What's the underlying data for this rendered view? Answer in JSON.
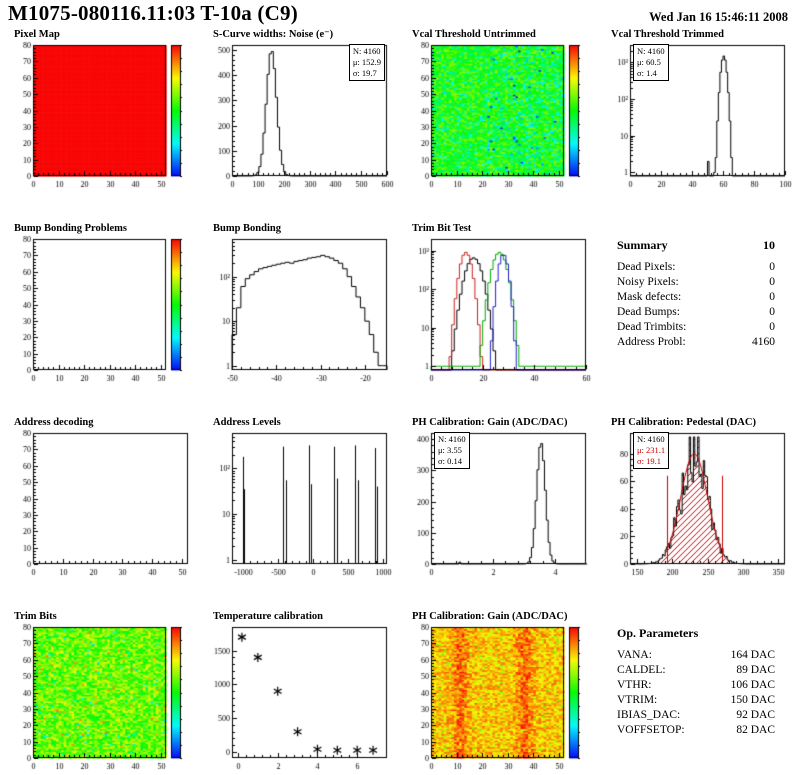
{
  "header": {
    "title": "M1075-080116.11:03 T-10a (C9)",
    "date": "Wed Jan 16 15:46:11 2008"
  },
  "chart_data": [
    {
      "title": "Pixel Map",
      "type": "heatmap",
      "pattern": "red",
      "colorbar": true,
      "seed": 11,
      "x": {
        "min": 0,
        "max": 52,
        "ticks": [
          0,
          10,
          20,
          30,
          40,
          50
        ]
      },
      "y": {
        "min": 0,
        "max": 80,
        "ticks": [
          0,
          10,
          20,
          30,
          40,
          50,
          60,
          70,
          80
        ]
      }
    },
    {
      "title": "S-Curve widths: Noise (e⁻)",
      "type": "hist",
      "bin": 8,
      "x": {
        "min": 0,
        "max": 600,
        "ticks": [
          0,
          100,
          200,
          300,
          400,
          500,
          600
        ]
      },
      "y": {
        "min": 0,
        "max": 520,
        "ticks": [
          0,
          100,
          200,
          300,
          400,
          500
        ]
      },
      "gauss": {
        "mu": 152.9,
        "sigma": 19.7,
        "amp": 500
      },
      "stats": {
        "pos": "tr",
        "lines": [
          "N: 4160",
          "μ: 152.9",
          "σ: 19.7"
        ]
      }
    },
    {
      "title": "Vcal Threshold Untrimmed",
      "type": "heatmap",
      "pattern": "cool",
      "colorbar": true,
      "seed": 7,
      "x": {
        "min": 0,
        "max": 52,
        "ticks": [
          0,
          10,
          20,
          30,
          40,
          50
        ]
      },
      "y": {
        "min": 0,
        "max": 80,
        "ticks": [
          0,
          10,
          20,
          30,
          40,
          50,
          60,
          70,
          80
        ]
      }
    },
    {
      "title": "Vcal Threshold Trimmed",
      "type": "hist",
      "logy": true,
      "bin": 1,
      "x": {
        "min": 0,
        "max": 100,
        "ticks": [
          0,
          20,
          40,
          60,
          80,
          100
        ]
      },
      "y": {
        "min": 0.8,
        "max": 3000,
        "ticks": [
          {
            "v": 1,
            "l": "1"
          },
          {
            "v": 10,
            "l": "10"
          },
          {
            "v": 100,
            "l": "10²"
          },
          {
            "v": 1000,
            "l": "10³"
          }
        ]
      },
      "gauss": {
        "mu": 60.5,
        "sigma": 1.4,
        "amp": 1500
      },
      "extra": [
        [
          50,
          2
        ],
        [
          54,
          1
        ]
      ],
      "stats": {
        "pos": "tl",
        "lines": [
          "N: 4160",
          "μ: 60.5",
          "σ: 1.4"
        ]
      }
    },
    {
      "title": "Bump Bonding Problems",
      "type": "empty",
      "colorbar": true,
      "x": {
        "min": 0,
        "max": 52,
        "ticks": [
          0,
          10,
          20,
          30,
          40,
          50
        ]
      },
      "y": {
        "min": 0,
        "max": 80,
        "ticks": [
          0,
          10,
          20,
          30,
          40,
          50,
          60,
          70,
          80
        ]
      }
    },
    {
      "title": "Bump Bonding",
      "type": "hist",
      "logy": true,
      "x": {
        "min": -50,
        "max": -15,
        "ticks": [
          -50,
          -40,
          -30,
          -20
        ]
      },
      "y": {
        "min": 0.8,
        "max": 700,
        "ticks": [
          {
            "v": 1,
            "l": "1"
          },
          {
            "v": 10,
            "l": "10"
          },
          {
            "v": 100,
            "l": "10²"
          }
        ]
      },
      "counts": {
        "x0": -50,
        "dx": 1,
        "values": [
          5,
          20,
          60,
          90,
          110,
          130,
          150,
          160,
          170,
          180,
          190,
          200,
          210,
          200,
          220,
          230,
          240,
          260,
          270,
          280,
          300,
          280,
          260,
          230,
          200,
          150,
          100,
          60,
          35,
          20,
          10,
          5,
          2,
          1,
          1
        ]
      }
    },
    {
      "title": "Trim Bit Test",
      "type": "multihist",
      "logy": true,
      "bin": 1,
      "x": {
        "min": 0,
        "max": 60,
        "ticks": [
          0,
          20,
          40,
          60
        ]
      },
      "y": {
        "min": 0.8,
        "max": 2000,
        "ticks": [
          {
            "v": 1,
            "l": "1"
          },
          {
            "v": 10,
            "l": "10"
          },
          {
            "v": 100,
            "l": "10²"
          },
          {
            "v": 1000,
            "l": "10³"
          }
        ]
      },
      "series": [
        {
          "color": "#000000",
          "mu": 16.5,
          "sigma": 2.4,
          "amp": 650
        },
        {
          "color": "#cc2222",
          "mu": 13.5,
          "sigma": 1.7,
          "amp": 900
        },
        {
          "color": "#00aa00",
          "mu": 26.5,
          "sigma": 2.1,
          "amp": 900,
          "floor": 1
        },
        {
          "color": "#2222cc",
          "mu": 28.0,
          "sigma": 1.4,
          "amp": 800
        }
      ]
    },
    {
      "type": "text",
      "heading": "Summary",
      "heading_value": "10",
      "rows": [
        [
          "Dead Pixels:",
          "0"
        ],
        [
          "Noisy Pixels:",
          "0"
        ],
        [
          "Mask defects:",
          "0"
        ],
        [
          "Dead Bumps:",
          "0"
        ],
        [
          "Dead Trimbits:",
          "0"
        ],
        [
          "Address Probl:",
          "4160"
        ]
      ]
    },
    {
      "title": "Address decoding",
      "type": "empty",
      "colorbar": false,
      "x": {
        "min": 0,
        "max": 52,
        "ticks": [
          0,
          10,
          20,
          30,
          40,
          50
        ]
      },
      "y": {
        "min": 0,
        "max": 80,
        "ticks": [
          0,
          10,
          20,
          30,
          40,
          50,
          60,
          70,
          80
        ]
      }
    },
    {
      "title": "Address Levels",
      "type": "spikes",
      "logy": true,
      "x": {
        "min": -1150,
        "max": 1050,
        "ticks": [
          -1000,
          -500,
          0,
          500,
          1000
        ]
      },
      "y": {
        "min": 0.8,
        "max": 600,
        "ticks": [
          {
            "v": 1,
            "l": "1"
          },
          {
            "v": 10,
            "l": "10"
          },
          {
            "v": 100,
            "l": "10²"
          }
        ]
      },
      "spikes": [
        [
          -1000,
          180
        ],
        [
          -975,
          35
        ],
        [
          -420,
          300
        ],
        [
          -390,
          55
        ],
        [
          -60,
          320
        ],
        [
          -25,
          45
        ],
        [
          300,
          300
        ],
        [
          335,
          60
        ],
        [
          600,
          320
        ],
        [
          635,
          55
        ],
        [
          880,
          280
        ],
        [
          910,
          40
        ]
      ]
    },
    {
      "title": "PH Calibration: Gain (ADC/DAC)",
      "type": "hist",
      "bin": 0.06,
      "x": {
        "min": 0,
        "max": 5,
        "ticks": [
          0,
          2,
          4
        ]
      },
      "y": {
        "min": 0,
        "max": 420,
        "ticks": [
          0,
          100,
          200,
          300,
          400
        ]
      },
      "gauss": {
        "mu": 3.55,
        "sigma": 0.14,
        "amp": 390
      },
      "extra": [
        [
          0.9,
          6
        ]
      ],
      "stats": {
        "pos": "tl",
        "lines": [
          "N: 4160",
          "μ: 3.55",
          "σ: 0.14"
        ]
      }
    },
    {
      "title": "PH Calibration: Pedestal (DAC)",
      "type": "hist",
      "bin": 2,
      "jitter": true,
      "hatch": true,
      "seed": 5,
      "x": {
        "min": 140,
        "max": 360,
        "ticks": [
          150,
          200,
          250,
          300,
          350
        ]
      },
      "y": {
        "min": 0,
        "max": 95,
        "ticks": [
          0,
          20,
          40,
          60,
          80
        ]
      },
      "gauss": {
        "mu": 231.1,
        "sigma": 19.1,
        "amp": 80
      },
      "fit": {
        "mu": 231.1,
        "sigma": 19.1,
        "amp": 80,
        "range": [
          192,
          270
        ],
        "lines": [
          192,
          270
        ]
      },
      "stats": {
        "pos": "tl",
        "lines": [
          "N: 4160",
          "μ: 231.1",
          "σ: 19.1"
        ]
      }
    },
    {
      "title": "Trim Bits",
      "type": "heatmap",
      "pattern": "green",
      "colorbar": true,
      "seed": 3,
      "x": {
        "min": 0,
        "max": 52,
        "ticks": [
          0,
          10,
          20,
          30,
          40,
          50
        ]
      },
      "y": {
        "min": 0,
        "max": 80,
        "ticks": [
          0,
          10,
          20,
          30,
          40,
          50,
          60,
          70,
          80
        ]
      }
    },
    {
      "title": "Temperature calibration",
      "type": "scatter",
      "x": {
        "min": -0.3,
        "max": 7.5,
        "ticks": [
          0,
          2,
          4,
          6
        ]
      },
      "y": {
        "min": -90,
        "max": 1850,
        "ticks": [
          0,
          500,
          1000,
          1500
        ]
      },
      "points": [
        [
          0.2,
          1700
        ],
        [
          1,
          1400
        ],
        [
          2,
          900
        ],
        [
          3,
          300
        ],
        [
          4,
          40
        ],
        [
          5,
          25
        ],
        [
          6,
          25
        ],
        [
          6.8,
          25
        ]
      ]
    },
    {
      "title": "PH Calibration: Gain (ADC/DAC)",
      "type": "heatmap",
      "pattern": "warm",
      "colorbar": true,
      "seed": 9,
      "x": {
        "min": 0,
        "max": 52,
        "ticks": [
          0,
          10,
          20,
          30,
          40,
          50
        ]
      },
      "y": {
        "min": 0,
        "max": 80,
        "ticks": [
          0,
          10,
          20,
          30,
          40,
          50,
          60,
          70,
          80
        ]
      }
    },
    {
      "type": "text",
      "heading": "Op. Parameters",
      "rows": [
        [
          "VANA:",
          "164 DAC"
        ],
        [
          "CALDEL:",
          "89 DAC"
        ],
        [
          "VTHR:",
          "106 DAC"
        ],
        [
          "VTRIM:",
          "150 DAC"
        ],
        [
          "IBIAS_DAC:",
          "92 DAC"
        ],
        [
          "VOFFSETOP:",
          "82 DAC"
        ]
      ]
    }
  ]
}
